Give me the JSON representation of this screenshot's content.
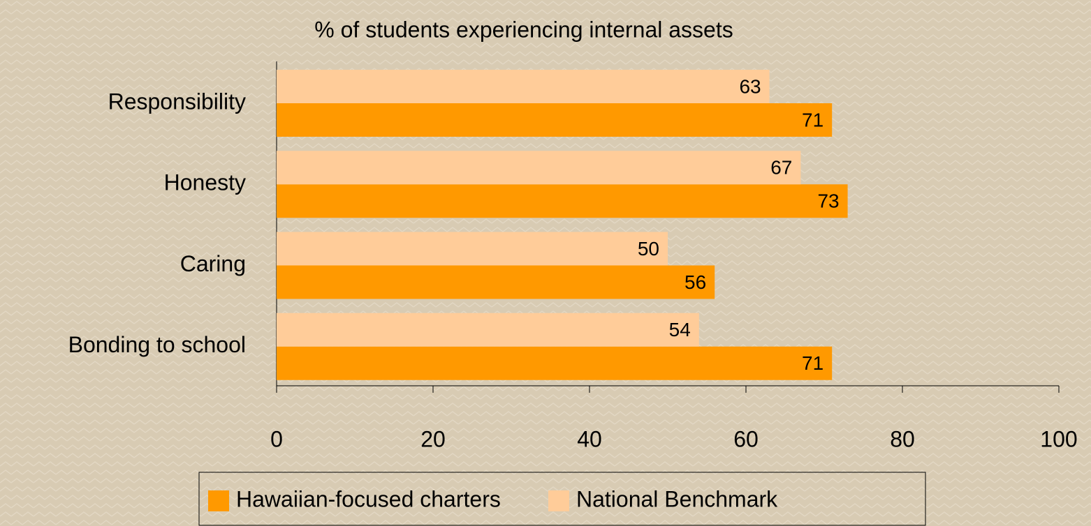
{
  "chart_data": {
    "type": "hbar",
    "title": "% of students experiencing internal assets",
    "categories": [
      "Responsibility",
      "Honesty",
      "Caring",
      "Bonding to school"
    ],
    "series": [
      {
        "name": "Hawaiian-focused charters",
        "color": "#ff9900",
        "values": [
          71,
          73,
          56,
          71
        ]
      },
      {
        "name": "National Benchmark",
        "color": "#ffcc99",
        "values": [
          63,
          67,
          50,
          54
        ]
      }
    ],
    "xlim": [
      0,
      100
    ],
    "xticks": [
      0,
      20,
      40,
      60,
      80,
      100
    ],
    "legend": "bottom"
  }
}
